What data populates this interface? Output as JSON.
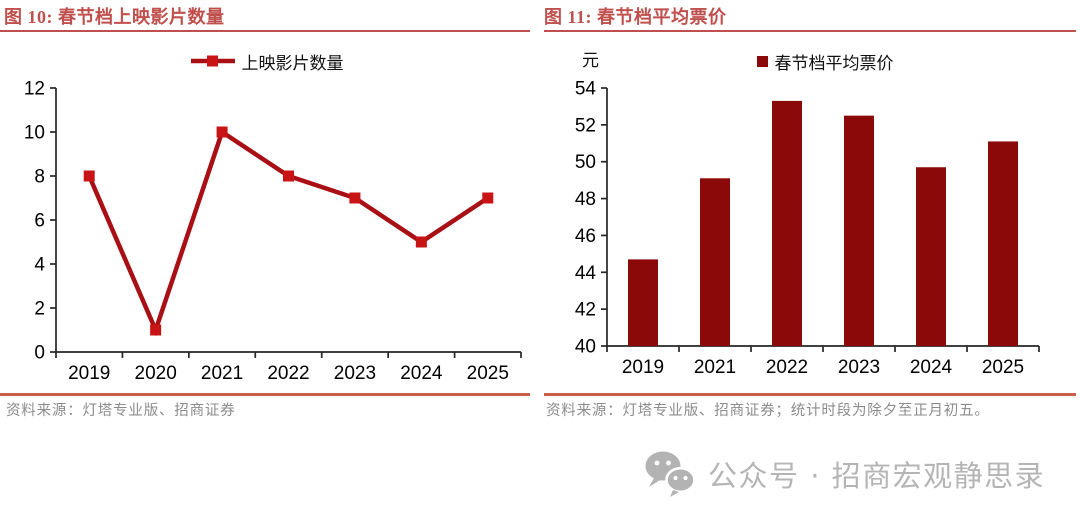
{
  "figures": [
    {
      "heading": "图 10:  春节档上映影片数量",
      "source": "资料来源：灯塔专业版、招商证券"
    },
    {
      "heading": "图 11:  春节档平均票价",
      "source": "资料来源：灯塔专业版、招商证券；统计时段为除夕至正月初五。"
    }
  ],
  "chart_data": [
    {
      "id": "fig10",
      "type": "line",
      "title": "春节档上映影片数量",
      "legend": "上映影片数量",
      "legend_position": "top-center",
      "categories": [
        "2019",
        "2020",
        "2021",
        "2022",
        "2023",
        "2024",
        "2025"
      ],
      "values": [
        8,
        1,
        10,
        8,
        7,
        5,
        7
      ],
      "xlabel": "",
      "ylabel": "",
      "ylim": [
        0,
        12
      ],
      "ytick_step": 2,
      "grid": false,
      "line_color": "#A91016",
      "marker_color": "#C81414",
      "marker_shape": "square"
    },
    {
      "id": "fig11",
      "type": "bar",
      "title": "春节档平均票价",
      "legend": "春节档平均票价",
      "legend_position": "top-center",
      "unit_label": "元",
      "categories": [
        "2019",
        "2021",
        "2022",
        "2023",
        "2024",
        "2025"
      ],
      "values": [
        44.7,
        49.1,
        53.3,
        52.5,
        49.7,
        51.1
      ],
      "xlabel": "",
      "ylabel": "元",
      "ylim": [
        40,
        54
      ],
      "ytick_step": 2,
      "grid": false,
      "bar_color": "#8B0909"
    }
  ],
  "watermark": {
    "icon": "wechat-icon",
    "text": "公众号 · 招商宏观静思录"
  },
  "colors": {
    "title_red": "#C0504D",
    "divider_red": "#CB5F47",
    "line_dark_red": "#A91016",
    "marker_red": "#C81414",
    "bar_dark_red": "#8B0909",
    "axis_black": "#262626",
    "source_gray": "#8C8C8C",
    "watermark_gray": "#B5B5B5"
  }
}
